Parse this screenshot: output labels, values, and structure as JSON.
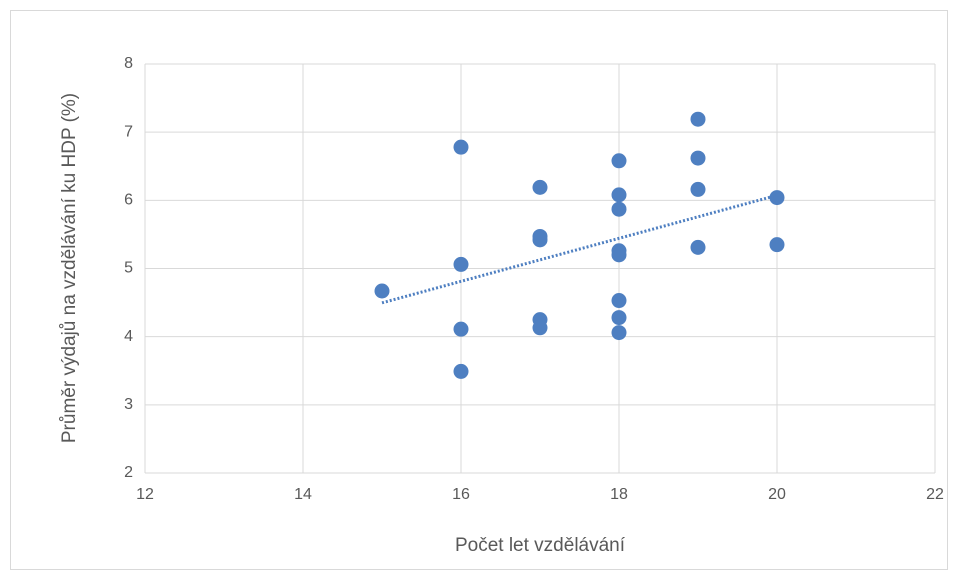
{
  "chart_data": {
    "type": "scatter",
    "x_label": "Počet let vzdělávání",
    "y_label": "Průměr výdajů na vzdělávání ku HDP (%)",
    "x": [
      15,
      16,
      16,
      16,
      16,
      17,
      17,
      17,
      17,
      17,
      18,
      18,
      18,
      18,
      18,
      18,
      18,
      18,
      19,
      19,
      19,
      19,
      20,
      20
    ],
    "values": [
      4.67,
      6.78,
      5.06,
      4.11,
      3.49,
      6.19,
      5.47,
      5.42,
      4.25,
      4.13,
      6.58,
      6.08,
      5.87,
      5.26,
      5.2,
      4.53,
      4.28,
      4.06,
      7.19,
      6.62,
      6.16,
      5.31,
      6.04,
      5.35
    ],
    "color": "#4e7fc1",
    "trendline": true,
    "xlim": [
      12,
      22
    ],
    "xticks": [
      12,
      14,
      16,
      18,
      20,
      22
    ],
    "ylim": [
      2,
      8
    ],
    "yticks": [
      2,
      3,
      4,
      5,
      6,
      7,
      8
    ],
    "grid": true
  }
}
